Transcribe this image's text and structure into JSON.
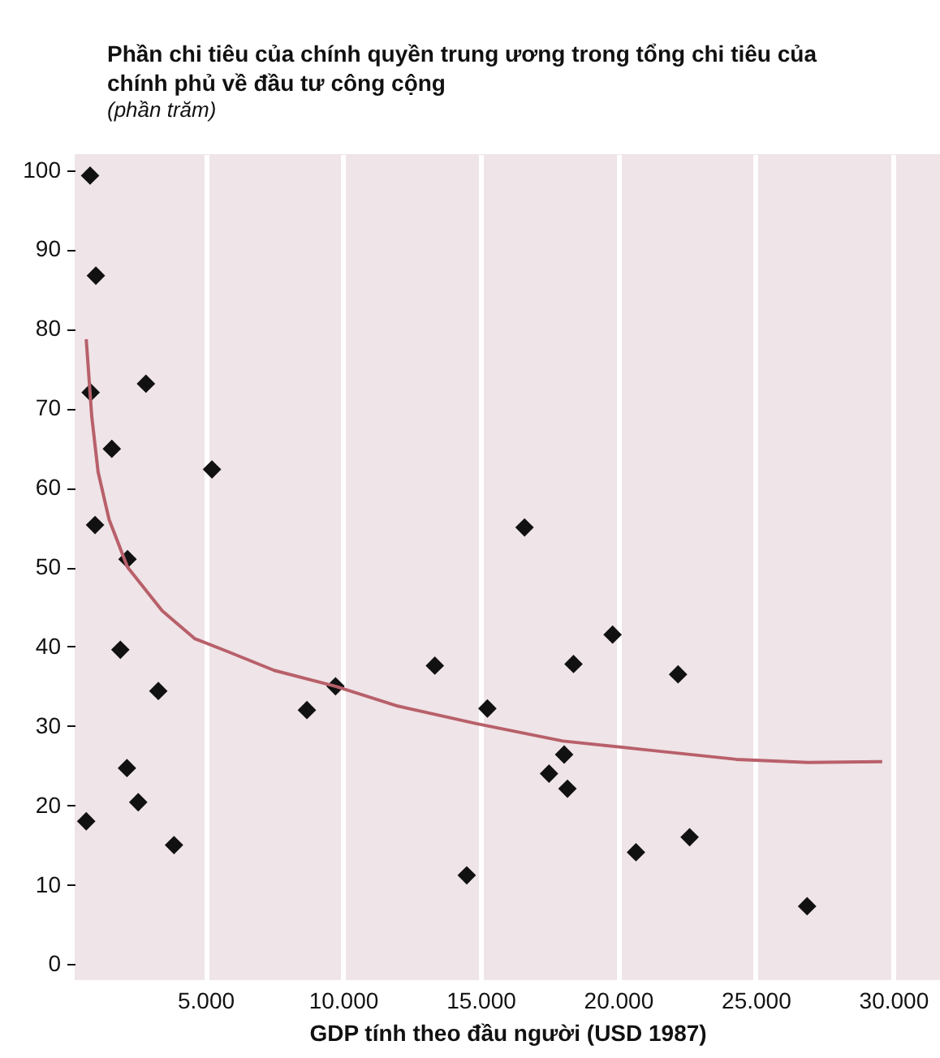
{
  "chart_data": {
    "type": "scatter",
    "title": "Phần chi tiêu của chính quyền trung ương trong tổng chi tiêu của chính phủ về đầu tư công cộng",
    "subtitle": "(phần trăm)",
    "xlabel": "GDP tính theo đầu người (USD 1987)",
    "xlim": [
      250,
      31700
    ],
    "ylim": [
      -2,
      102
    ],
    "xticks": [
      {
        "value": 5000,
        "label": "5.000"
      },
      {
        "value": 10000,
        "label": "10.000"
      },
      {
        "value": 15000,
        "label": "15.000"
      },
      {
        "value": 20000,
        "label": "20.000"
      },
      {
        "value": 25000,
        "label": "25.000"
      },
      {
        "value": 30000,
        "label": "30.000"
      }
    ],
    "yticks": [
      0,
      10,
      20,
      30,
      40,
      50,
      60,
      70,
      80,
      90,
      100
    ],
    "grid": "x",
    "series": [
      {
        "marker": "diamond",
        "color": "#111111",
        "x": [
          810,
          1020,
          830,
          2840,
          1600,
          5240,
          990,
          2170,
          1910,
          3290,
          8690,
          9730,
          13340,
          2150,
          2560,
          670,
          3860,
          14500,
          15250,
          19800,
          18380,
          22180,
          18040,
          17490,
          18160,
          22600,
          20650,
          26870,
          16600
        ],
        "values": [
          99.3,
          86.7,
          72,
          73.1,
          64.9,
          62.3,
          55.3,
          51,
          39.6,
          34.4,
          32,
          35,
          37.6,
          24.7,
          20.4,
          18,
          15,
          11.2,
          32.2,
          41.5,
          37.8,
          36.5,
          26.4,
          24,
          22.1,
          16,
          14.1,
          7.3,
          55
        ]
      },
      {
        "type": "line",
        "marker": "none",
        "line_style": "solid",
        "color": "#b8606a",
        "x": [
          670,
          870,
          1100,
          1500,
          2170,
          3430,
          4610,
          5790,
          7500,
          9730,
          12000,
          14850,
          18000,
          21000,
          24300,
          26900,
          29600
        ],
        "values": [
          78.7,
          69,
          62,
          56,
          50,
          44.5,
          41,
          39.4,
          37,
          35,
          32.5,
          30.3,
          28.1,
          27,
          25.8,
          25.4,
          25.5
        ]
      }
    ]
  }
}
